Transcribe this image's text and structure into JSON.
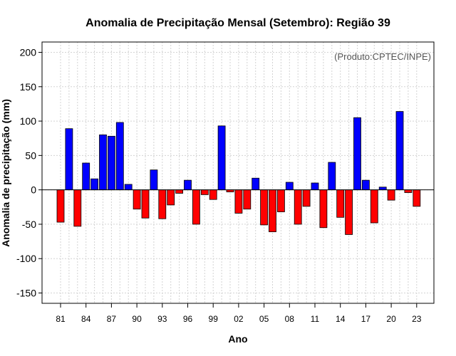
{
  "chart_data": {
    "type": "bar",
    "title": "Anomalia de Precipitação Mensal (Setembro): Região 39",
    "xlabel": "Ano",
    "ylabel": "Anomalia de precipitação (mm)",
    "annotation": "(Produto:CPTEC/INPE)",
    "ylim": [
      -165,
      215
    ],
    "yticks": [
      -150,
      -100,
      -50,
      0,
      50,
      100,
      150,
      200
    ],
    "ytick_labels": [
      "-150",
      "-100",
      "-50",
      "0",
      "50",
      "100",
      "150",
      "200"
    ],
    "xtick_labels": [
      "81",
      "84",
      "87",
      "90",
      "93",
      "96",
      "99",
      "02",
      "05",
      "08",
      "11",
      "14",
      "17",
      "20",
      "23"
    ],
    "xtick_every": 3,
    "categories": [
      "1981",
      "1982",
      "1983",
      "1984",
      "1985",
      "1986",
      "1987",
      "1988",
      "1989",
      "1990",
      "1991",
      "1992",
      "1993",
      "1994",
      "1995",
      "1996",
      "1997",
      "1998",
      "1999",
      "2000",
      "2001",
      "2002",
      "2003",
      "2004",
      "2005",
      "2006",
      "2007",
      "2008",
      "2009",
      "2010",
      "2011",
      "2012",
      "2013",
      "2014",
      "2015",
      "2016",
      "2017",
      "2018",
      "2019",
      "2020",
      "2021",
      "2022",
      "2023"
    ],
    "values": [
      -47,
      89,
      -53,
      39,
      16,
      80,
      78,
      98,
      8,
      -28,
      -41,
      29,
      -42,
      -22,
      -5,
      14,
      -50,
      -7,
      -14,
      93,
      -3,
      -34,
      -28,
      17,
      -51,
      -61,
      -32,
      11,
      -50,
      -24,
      10,
      -55,
      40,
      -40,
      -65,
      105,
      14,
      -48,
      4,
      -15,
      114,
      -4,
      -24
    ],
    "colors": {
      "positive": "#0000ff",
      "negative": "#ff0000",
      "border": "#000000",
      "grid": "#d3d3d3"
    },
    "grid": true
  }
}
